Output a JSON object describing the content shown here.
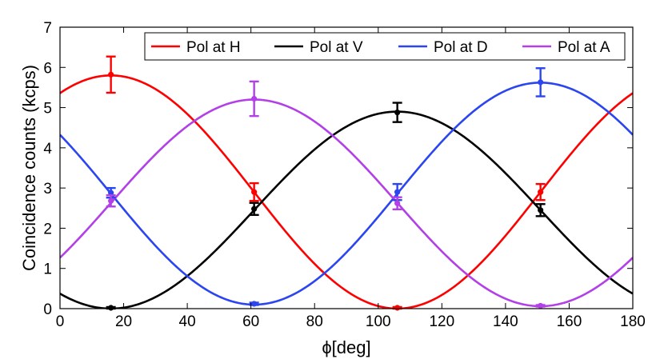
{
  "chart_data": {
    "type": "line",
    "xlabel": "ϕ[deg]",
    "ylabel": "Coincidence counts (kcps)",
    "xlim": [
      0,
      180
    ],
    "ylim": [
      0,
      7
    ],
    "xticks": [
      0,
      20,
      40,
      60,
      80,
      100,
      120,
      140,
      160,
      180
    ],
    "yticks": [
      0,
      1,
      2,
      3,
      4,
      5,
      6,
      7
    ],
    "grid": false,
    "legend_position": "top",
    "series": [
      {
        "name": "Pol at H",
        "color": "#ff0000",
        "fit": {
          "offset": 2.9,
          "amplitude": 2.9,
          "peak_x": 16
        },
        "points": [
          {
            "x": 16,
            "y": 5.82,
            "err": 0.45
          },
          {
            "x": 61,
            "y": 2.9,
            "err": 0.22
          },
          {
            "x": 106,
            "y": 0.02,
            "err": 0.02
          },
          {
            "x": 151,
            "y": 2.9,
            "err": 0.2
          }
        ]
      },
      {
        "name": "Pol at V",
        "color": "#000000",
        "fit": {
          "offset": 2.45,
          "amplitude": 2.45,
          "peak_x": 106
        },
        "points": [
          {
            "x": 16,
            "y": 0.02,
            "err": 0.02
          },
          {
            "x": 61,
            "y": 2.48,
            "err": 0.15
          },
          {
            "x": 106,
            "y": 4.88,
            "err": 0.24
          },
          {
            "x": 151,
            "y": 2.45,
            "err": 0.15
          }
        ]
      },
      {
        "name": "Pol at D",
        "color": "#2b45f0",
        "fit": {
          "offset": 2.86,
          "amplitude": 2.76,
          "peak_x": 151
        },
        "points": [
          {
            "x": 16,
            "y": 2.88,
            "err": 0.12
          },
          {
            "x": 61,
            "y": 0.12,
            "err": 0.03
          },
          {
            "x": 106,
            "y": 2.9,
            "err": 0.2
          },
          {
            "x": 151,
            "y": 5.63,
            "err": 0.35
          }
        ]
      },
      {
        "name": "Pol at A",
        "color": "#b23fe8",
        "fit": {
          "offset": 2.63,
          "amplitude": 2.57,
          "peak_x": 61
        },
        "points": [
          {
            "x": 16,
            "y": 2.68,
            "err": 0.14
          },
          {
            "x": 61,
            "y": 5.22,
            "err": 0.43
          },
          {
            "x": 106,
            "y": 2.62,
            "err": 0.15
          },
          {
            "x": 151,
            "y": 0.07,
            "err": 0.02
          }
        ]
      }
    ]
  }
}
